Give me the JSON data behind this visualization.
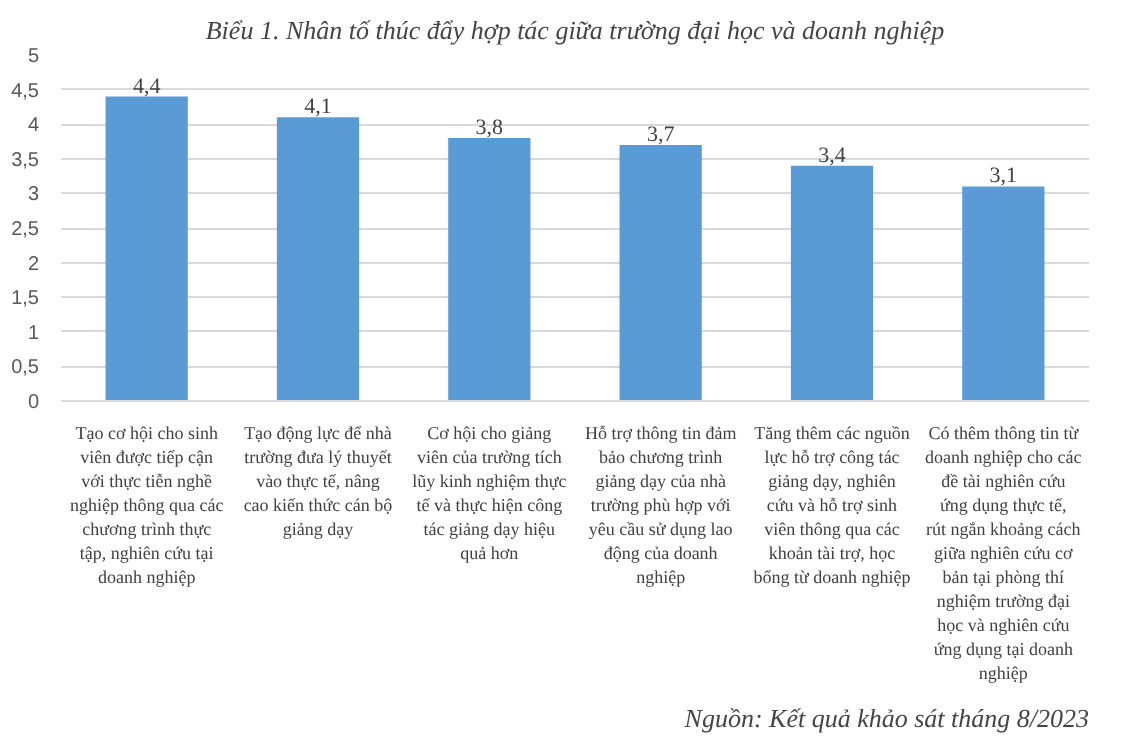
{
  "chart_data": {
    "type": "bar",
    "title": "Biểu 1. Nhân tố thúc đẩy hợp tác giữa trường đại học và doanh nghiệp",
    "categories": [
      "Tạo cơ hội cho sinh viên được tiếp cận với thực tiễn nghề nghiệp thông qua các chương trình thực tập, nghiên cứu tại doanh nghiệp",
      "Tạo động lực để nhà trường đưa lý thuyết vào thực tế, nâng cao kiến thức cán bộ giảng dạy",
      "Cơ hội cho giảng viên của trường tích lũy kinh nghiệm thực tế và thực hiện công tác giảng dạy hiệu quả hơn",
      "Hỗ trợ thông tin đảm bảo chương trình giảng dạy của nhà trường phù hợp với yêu cầu sử dụng lao động của doanh nghiệp",
      "Tăng thêm các nguồn lực hỗ trợ công tác giảng dạy, nghiên cứu và hỗ trợ sinh viên thông qua các khoản tài trợ, học bổng từ doanh nghiệp",
      "Có thêm thông tin từ doanh nghiệp cho các đề tài nghiên cứu ứng dụng thực tế, rút ngắn khoảng cách giữa nghiên cứu cơ bản tại phòng thí nghiệm trường đại học và nghiên cứu ứng dụng tại doanh nghiệp"
    ],
    "values": [
      4.4,
      4.1,
      3.8,
      3.7,
      3.4,
      3.1
    ],
    "value_labels": [
      "4,4",
      "4,1",
      "3,8",
      "3,7",
      "3,4",
      "3,1"
    ],
    "color": "#5b9bd5",
    "ylim": [
      0,
      5
    ],
    "yticks": [
      0,
      {
        "value": 0.5,
        "label": "0,5"
      },
      1,
      {
        "value": 1.5,
        "label": "1,5"
      },
      2,
      {
        "value": 2.5,
        "label": "2,5"
      },
      3,
      {
        "value": 3.5,
        "label": "3,5"
      },
      4,
      {
        "value": 4.5,
        "label": "4,5"
      },
      5
    ],
    "grid": "y",
    "annotations": [
      "Nguồn: Kết quả khảo sát tháng 8/2023"
    ]
  }
}
